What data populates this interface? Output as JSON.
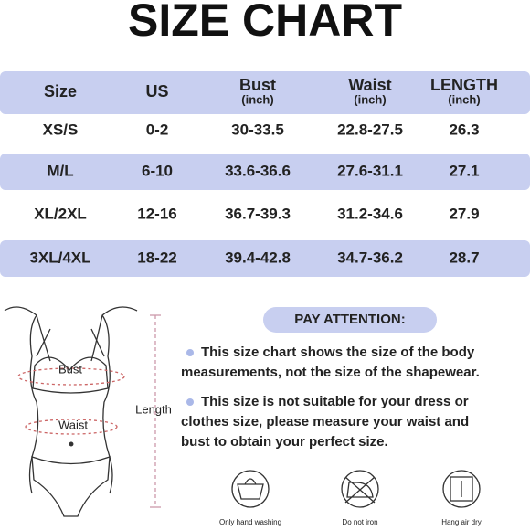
{
  "title": "SIZE CHART",
  "table": {
    "columns": [
      {
        "label": "Size"
      },
      {
        "label": "US"
      },
      {
        "label": "Bust",
        "unit": "(inch)"
      },
      {
        "label": "Waist",
        "unit": "(inch)"
      },
      {
        "label": "LENGTH",
        "unit": "(inch)"
      }
    ],
    "rows": [
      [
        "XS/S",
        "0-2",
        "30-33.5",
        "22.8-27.5",
        "26.3"
      ],
      [
        "M/L",
        "6-10",
        "33.6-36.6",
        "27.6-31.1",
        "27.1"
      ],
      [
        "XL/2XL",
        "12-16",
        "36.7-39.3",
        "31.2-34.6",
        "27.9"
      ],
      [
        "3XL/4XL",
        "18-22",
        "39.4-42.8",
        "34.7-36.2",
        "28.7"
      ]
    ]
  },
  "figure": {
    "bust": "Bust",
    "waist": "Waist",
    "length": "Length"
  },
  "notice": {
    "heading": "PAY ATTENTION:",
    "notes": [
      [
        "This size chart shows the size of the body",
        "measurements, not the size of the shapewear."
      ],
      [
        "This size is not suitable for your dress or",
        "clothes size, please measure your waist and",
        "bust to obtain your perfect size."
      ]
    ]
  },
  "care": [
    "Only hand washing",
    "Do not iron",
    "Hang air dry"
  ]
}
